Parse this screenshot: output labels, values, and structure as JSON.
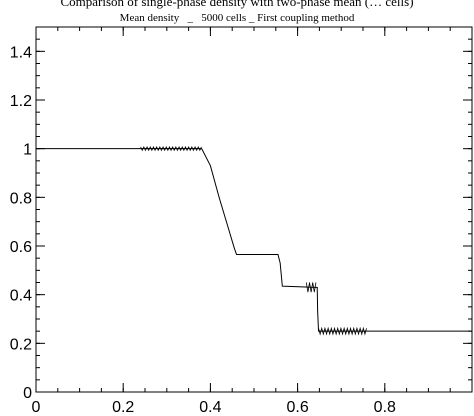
{
  "page_caption": "Comparison of single-phase density with two-phase mean (… cells)",
  "chart_data": {
    "type": "line",
    "title": "Mean density   _   5000 cells _ First coupling method",
    "xlabel": "",
    "ylabel": "",
    "xlim": [
      0,
      1
    ],
    "ylim": [
      0,
      1.5
    ],
    "x_ticks": [
      0,
      0.2,
      0.4,
      0.6,
      0.8
    ],
    "x_tick_labels": [
      "0",
      "0.2",
      "0.4",
      "0.6",
      "0.8"
    ],
    "y_ticks": [
      0,
      0.2,
      0.4,
      0.6,
      0.8,
      1,
      1.2,
      1.4
    ],
    "y_tick_labels": [
      "0",
      "0.2",
      "0.4",
      "0.6",
      "0.8",
      "1",
      "1.2",
      "1.4"
    ],
    "grid": false,
    "series": [
      {
        "color": "#000000",
        "x": [
          0,
          0.24,
          0.38,
          0.4,
          0.42,
          0.44,
          0.455,
          0.46,
          0.52,
          0.555,
          0.56,
          0.565,
          0.64,
          0.645,
          0.646,
          0.648,
          0.76,
          0.765,
          1.0
        ],
        "y": [
          1.0,
          1.0,
          1.0,
          0.93,
          0.8,
          0.68,
          0.59,
          0.565,
          0.565,
          0.565,
          0.53,
          0.435,
          0.43,
          0.43,
          0.33,
          0.25,
          0.25,
          0.25,
          0.25
        ]
      }
    ],
    "oscillations": [
      {
        "x_start": 0.24,
        "x_end": 0.38,
        "y": 1.0,
        "amplitude": 0.007
      },
      {
        "x_start": 0.62,
        "x_end": 0.645,
        "y": 0.43,
        "amplitude": 0.02
      },
      {
        "x_start": 0.648,
        "x_end": 0.76,
        "y": 0.25,
        "amplitude": 0.012
      }
    ]
  }
}
